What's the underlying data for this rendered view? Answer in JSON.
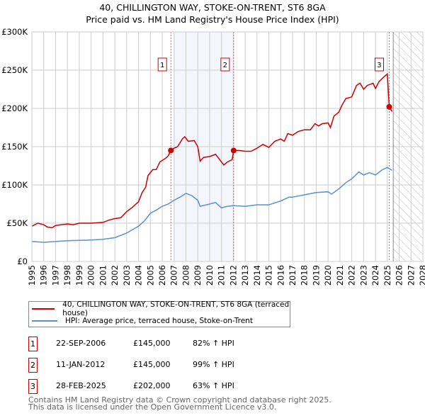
{
  "chart_data": {
    "type": "line",
    "title": "40, CHILLINGTON WAY, STOKE-ON-TRENT, ST6 8GA",
    "subtitle": "Price paid vs. HM Land Registry's House Price Index (HPI)",
    "xlim": [
      1995,
      2028
    ],
    "ylim": [
      0,
      300000
    ],
    "x_ticks": [
      "1995",
      "1996",
      "1997",
      "1998",
      "1999",
      "2000",
      "2001",
      "2002",
      "2003",
      "2004",
      "2005",
      "2006",
      "2007",
      "2008",
      "2009",
      "2010",
      "2011",
      "2012",
      "2013",
      "2014",
      "2015",
      "2016",
      "2017",
      "2018",
      "2019",
      "2020",
      "2021",
      "2022",
      "2023",
      "2024",
      "2025",
      "2026",
      "2027",
      "2028"
    ],
    "y_ticks": [
      {
        "v": 0,
        "label": "£0"
      },
      {
        "v": 50000,
        "label": "£50K"
      },
      {
        "v": 100000,
        "label": "£100K"
      },
      {
        "v": 150000,
        "label": "£150K"
      },
      {
        "v": 200000,
        "label": "£200K"
      },
      {
        "v": 250000,
        "label": "£250K"
      },
      {
        "v": 300000,
        "label": "£300K"
      }
    ],
    "grid": true,
    "shaded_period": [
      2007.0,
      2012.03
    ],
    "forecast_hatch_from": 2025.5,
    "colors": {
      "property": "#cc0000",
      "hpi": "#5b8fd6"
    },
    "series": [
      {
        "name": "40, CHILLINGTON WAY, STOKE-ON-TRENT, ST6 8GA (terraced house)",
        "points": [
          [
            1995,
            46
          ],
          [
            1995.5,
            50
          ],
          [
            1996,
            48
          ],
          [
            1996.3,
            45
          ],
          [
            1996.7,
            44
          ],
          [
            1997,
            47
          ],
          [
            1998,
            49
          ],
          [
            1998.5,
            48
          ],
          [
            1999,
            50
          ],
          [
            2000,
            50
          ],
          [
            2001,
            51
          ],
          [
            2001.5,
            54
          ],
          [
            2002,
            56
          ],
          [
            2002.5,
            57
          ],
          [
            2003,
            65
          ],
          [
            2003.5,
            71
          ],
          [
            2004,
            78
          ],
          [
            2004.3,
            90
          ],
          [
            2004.6,
            97
          ],
          [
            2004.8,
            112
          ],
          [
            2005.2,
            120
          ],
          [
            2005.5,
            120
          ],
          [
            2005.8,
            130
          ],
          [
            2006.3,
            135
          ],
          [
            2006.5,
            138
          ],
          [
            2006.73,
            145
          ],
          [
            2007,
            148
          ],
          [
            2007.3,
            150
          ],
          [
            2007.7,
            160
          ],
          [
            2007.9,
            163
          ],
          [
            2008.2,
            157
          ],
          [
            2008.7,
            158
          ],
          [
            2009,
            150
          ],
          [
            2009.2,
            131
          ],
          [
            2009.5,
            136
          ],
          [
            2010,
            137
          ],
          [
            2010.5,
            140
          ],
          [
            2011,
            130
          ],
          [
            2011.2,
            126
          ],
          [
            2011.5,
            130
          ],
          [
            2011.9,
            133
          ],
          [
            2012.03,
            145
          ],
          [
            2012.5,
            145
          ],
          [
            2013,
            144
          ],
          [
            2013.5,
            144
          ],
          [
            2014,
            148
          ],
          [
            2014.5,
            153
          ],
          [
            2015,
            149
          ],
          [
            2015.5,
            157
          ],
          [
            2016,
            160
          ],
          [
            2016.3,
            157
          ],
          [
            2016.6,
            167
          ],
          [
            2017,
            165
          ],
          [
            2017.5,
            170
          ],
          [
            2018,
            172
          ],
          [
            2018.5,
            172
          ],
          [
            2018.9,
            180
          ],
          [
            2019.2,
            177
          ],
          [
            2019.5,
            180
          ],
          [
            2020,
            181
          ],
          [
            2020.2,
            175
          ],
          [
            2020.5,
            190
          ],
          [
            2020.9,
            195
          ],
          [
            2021.2,
            205
          ],
          [
            2021.5,
            213
          ],
          [
            2022,
            215
          ],
          [
            2022.4,
            230
          ],
          [
            2022.7,
            233
          ],
          [
            2023,
            225
          ],
          [
            2023.3,
            230
          ],
          [
            2023.8,
            233
          ],
          [
            2024,
            226
          ],
          [
            2024.3,
            235
          ],
          [
            2024.7,
            241
          ],
          [
            2025,
            245
          ],
          [
            2025.16,
            202
          ],
          [
            2025.4,
            196
          ]
        ]
      },
      {
        "name": "HPI: Average price, terraced house, Stoke-on-Trent",
        "points": [
          [
            1995,
            26
          ],
          [
            1996,
            25
          ],
          [
            1997,
            26
          ],
          [
            1998,
            27
          ],
          [
            1999,
            27.5
          ],
          [
            2000,
            28
          ],
          [
            2001,
            29
          ],
          [
            2002,
            31
          ],
          [
            2003,
            37
          ],
          [
            2004,
            46
          ],
          [
            2004.5,
            53
          ],
          [
            2005,
            63
          ],
          [
            2005.5,
            67
          ],
          [
            2006,
            72
          ],
          [
            2006.5,
            75
          ],
          [
            2007,
            80
          ],
          [
            2007.5,
            84
          ],
          [
            2008,
            89
          ],
          [
            2008.5,
            86
          ],
          [
            2009,
            80
          ],
          [
            2009.2,
            72
          ],
          [
            2010,
            75
          ],
          [
            2010.5,
            77
          ],
          [
            2011,
            70
          ],
          [
            2011.5,
            72
          ],
          [
            2012,
            73
          ],
          [
            2013,
            72
          ],
          [
            2014,
            74
          ],
          [
            2015,
            74
          ],
          [
            2016,
            79
          ],
          [
            2016.7,
            84
          ],
          [
            2017,
            84
          ],
          [
            2018,
            87
          ],
          [
            2019,
            90
          ],
          [
            2020,
            91
          ],
          [
            2020.3,
            88
          ],
          [
            2021,
            96
          ],
          [
            2021.5,
            103
          ],
          [
            2022,
            108
          ],
          [
            2022.6,
            117
          ],
          [
            2023,
            113
          ],
          [
            2023.5,
            116
          ],
          [
            2024,
            113
          ],
          [
            2024.5,
            119
          ],
          [
            2025,
            123
          ],
          [
            2025.4,
            119
          ]
        ]
      }
    ],
    "sales": [
      {
        "id": "1",
        "x": 2006.73,
        "price": 145000,
        "date": "22-SEP-2006",
        "price_label": "£145,000",
        "hpi": "82% ↑ HPI"
      },
      {
        "id": "2",
        "x": 2012.03,
        "price": 145000,
        "date": "11-JAN-2012",
        "price_label": "£145,000",
        "hpi": "99% ↑ HPI"
      },
      {
        "id": "3",
        "x": 2025.16,
        "price": 202000,
        "date": "28-FEB-2025",
        "price_label": "£202,000",
        "hpi": "63% ↑ HPI"
      }
    ]
  },
  "footer": {
    "line1": "Contains HM Land Registry data © Crown copyright and database right 2025.",
    "line2": "This data is licensed under the Open Government Licence v3.0."
  }
}
